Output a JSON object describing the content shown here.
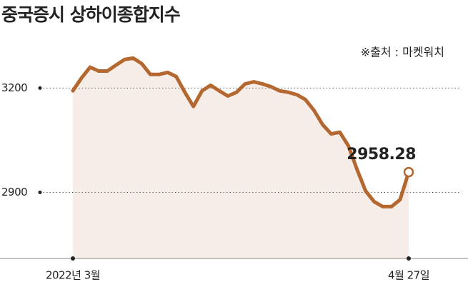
{
  "chart_data": {
    "type": "line",
    "title": "중국증시 상하이종합지수",
    "source": "※출처 : 마켓워치",
    "categories": [
      "2022년 3월",
      null,
      null,
      null,
      null,
      null,
      null,
      null,
      null,
      null,
      null,
      null,
      null,
      null,
      null,
      null,
      null,
      null,
      null,
      null,
      null,
      null,
      null,
      null,
      null,
      null,
      null,
      null,
      null,
      null,
      null,
      null,
      null,
      null,
      null,
      null,
      null,
      null,
      null,
      "4월 27일"
    ],
    "values": [
      3192,
      3229,
      3260,
      3249,
      3249,
      3266,
      3282,
      3286,
      3270,
      3239,
      3239,
      3245,
      3233,
      3188,
      3147,
      3192,
      3208,
      3192,
      3177,
      3188,
      3212,
      3218,
      3212,
      3204,
      3192,
      3188,
      3181,
      3167,
      3136,
      3095,
      3068,
      3073,
      3034,
      2966,
      2904,
      2873,
      2859,
      2859,
      2879,
      2958.28
    ],
    "color": "#b4672e",
    "area_color": "#f6ede8",
    "ylim": [
      2710,
      3330
    ],
    "yticks": [
      2900,
      3200
    ],
    "grid": true
  }
}
